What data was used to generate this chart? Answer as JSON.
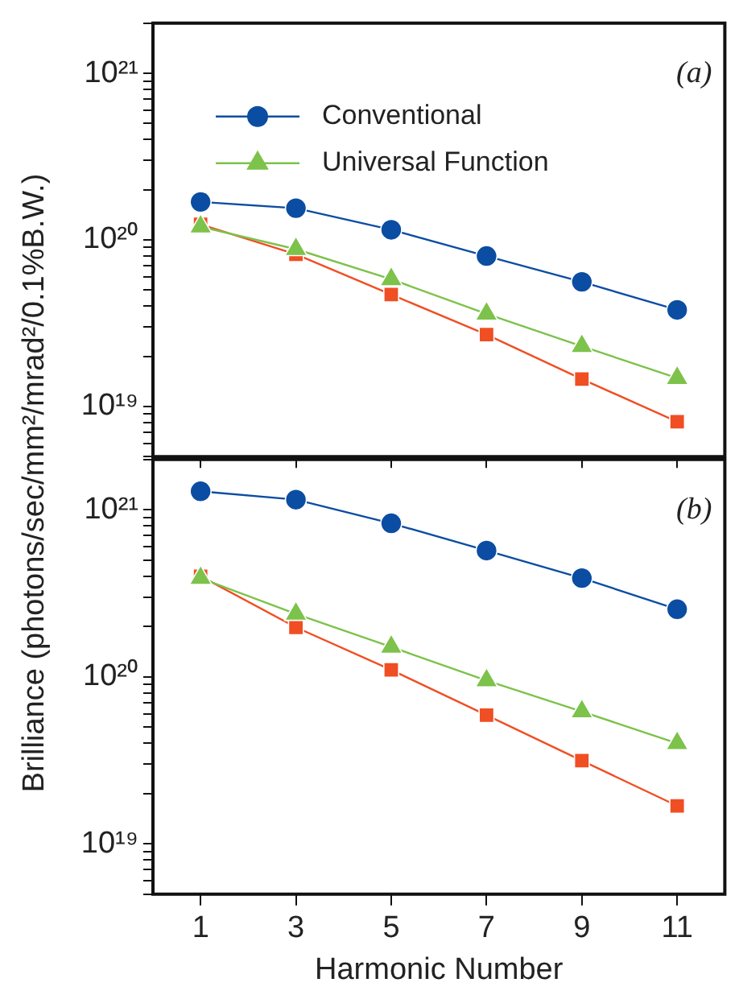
{
  "chart_data": [
    {
      "type": "line",
      "ylabel": "Brilliance (photons/sec/mm²/mrad²/0.1%B.W.)",
      "x": [
        1,
        3,
        5,
        7,
        9,
        11
      ],
      "xlim": [
        0,
        12
      ],
      "xticks": [
        1,
        3,
        5,
        7,
        9,
        11
      ],
      "log": "y",
      "ylim": [
        5e+18,
        2e+21
      ],
      "yticks": [
        {
          "value": 5e+18,
          "label": null
        },
        {
          "value": 6e+18,
          "label": null
        },
        {
          "value": 7e+18,
          "label": null
        },
        {
          "value": 8e+18,
          "label": null
        },
        {
          "value": 9e+18,
          "label": null
        },
        {
          "value": 1e+19,
          "label": "10¹⁹"
        },
        {
          "value": 2e+19,
          "label": null
        },
        {
          "value": 3e+19,
          "label": null
        },
        {
          "value": 4e+19,
          "label": null
        },
        {
          "value": 5e+19,
          "label": null
        },
        {
          "value": 6e+19,
          "label": null
        },
        {
          "value": 7e+19,
          "label": null
        },
        {
          "value": 8e+19,
          "label": null
        },
        {
          "value": 9e+19,
          "label": null
        },
        {
          "value": 1e+20,
          "label": "10²⁰"
        },
        {
          "value": 2e+20,
          "label": null
        },
        {
          "value": 3e+20,
          "label": null
        },
        {
          "value": 4e+20,
          "label": null
        },
        {
          "value": 5e+20,
          "label": null
        },
        {
          "value": 6e+20,
          "label": null
        },
        {
          "value": 7e+20,
          "label": null
        },
        {
          "value": 8e+20,
          "label": null
        },
        {
          "value": 9e+20,
          "label": null
        },
        {
          "value": 1e+21,
          "label": "10²¹"
        },
        {
          "value": 2e+21,
          "label": null
        }
      ],
      "tick_labels": "y",
      "grid": false,
      "legend": "top",
      "annotations": [
        "(a)"
      ],
      "series": [
        {
          "color": "#f04e23",
          "marker": "square",
          "values": [
            1.24e+20,
            8.2e+19,
            4.7e+19,
            2.7e+19,
            1.46e+19,
            8.1e+18
          ]
        },
        {
          "name": "Conventional",
          "color": "#0b4da2",
          "marker": "circle",
          "values": [
            1.69e+20,
            1.55e+20,
            1.15e+20,
            8e+19,
            5.6e+19,
            3.8e+19
          ]
        },
        {
          "name": "Universal Function",
          "color": "#7dc24b",
          "marker": "triangle",
          "values": [
            1.2e+20,
            8.8e+19,
            5.8e+19,
            3.6e+19,
            2.3e+19,
            1.48e+19
          ]
        }
      ]
    },
    {
      "type": "line",
      "xlabel": "Harmonic Number",
      "x": [
        1,
        3,
        5,
        7,
        9,
        11
      ],
      "xlim": [
        0,
        12
      ],
      "xticks": [
        1,
        3,
        5,
        7,
        9,
        11
      ],
      "log": "y",
      "ylim": [
        5e+18,
        2e+21
      ],
      "yticks": [
        {
          "value": 5e+18,
          "label": null
        },
        {
          "value": 6e+18,
          "label": null
        },
        {
          "value": 7e+18,
          "label": null
        },
        {
          "value": 8e+18,
          "label": null
        },
        {
          "value": 9e+18,
          "label": null
        },
        {
          "value": 1e+19,
          "label": "10¹⁹"
        },
        {
          "value": 2e+19,
          "label": null
        },
        {
          "value": 3e+19,
          "label": null
        },
        {
          "value": 4e+19,
          "label": null
        },
        {
          "value": 5e+19,
          "label": null
        },
        {
          "value": 6e+19,
          "label": null
        },
        {
          "value": 7e+19,
          "label": null
        },
        {
          "value": 8e+19,
          "label": null
        },
        {
          "value": 9e+19,
          "label": null
        },
        {
          "value": 1e+20,
          "label": "10²⁰"
        },
        {
          "value": 2e+20,
          "label": null
        },
        {
          "value": 3e+20,
          "label": null
        },
        {
          "value": 4e+20,
          "label": null
        },
        {
          "value": 5e+20,
          "label": null
        },
        {
          "value": 6e+20,
          "label": null
        },
        {
          "value": 7e+20,
          "label": null
        },
        {
          "value": 8e+20,
          "label": null
        },
        {
          "value": 9e+20,
          "label": null
        },
        {
          "value": 1e+21,
          "label": "10²¹"
        },
        {
          "value": 2e+21,
          "label": null
        }
      ],
      "grid": false,
      "annotations": [
        "(b)"
      ],
      "series": [
        {
          "color": "#f04e23",
          "marker": "square",
          "values": [
            4e+20,
            1.98e+20,
            1.1e+20,
            5.9e+19,
            3.15e+19,
            1.69e+19
          ]
        },
        {
          "color": "#0b4da2",
          "marker": "circle",
          "values": [
            1.29e+21,
            1.15e+21,
            8.3e+20,
            5.7e+20,
            3.9e+20,
            2.54e+20
          ]
        },
        {
          "color": "#7dc24b",
          "marker": "triangle",
          "values": [
            3.9e+20,
            2.38e+20,
            1.51e+20,
            9.5e+19,
            6.2e+19,
            4e+19
          ]
        }
      ]
    }
  ]
}
